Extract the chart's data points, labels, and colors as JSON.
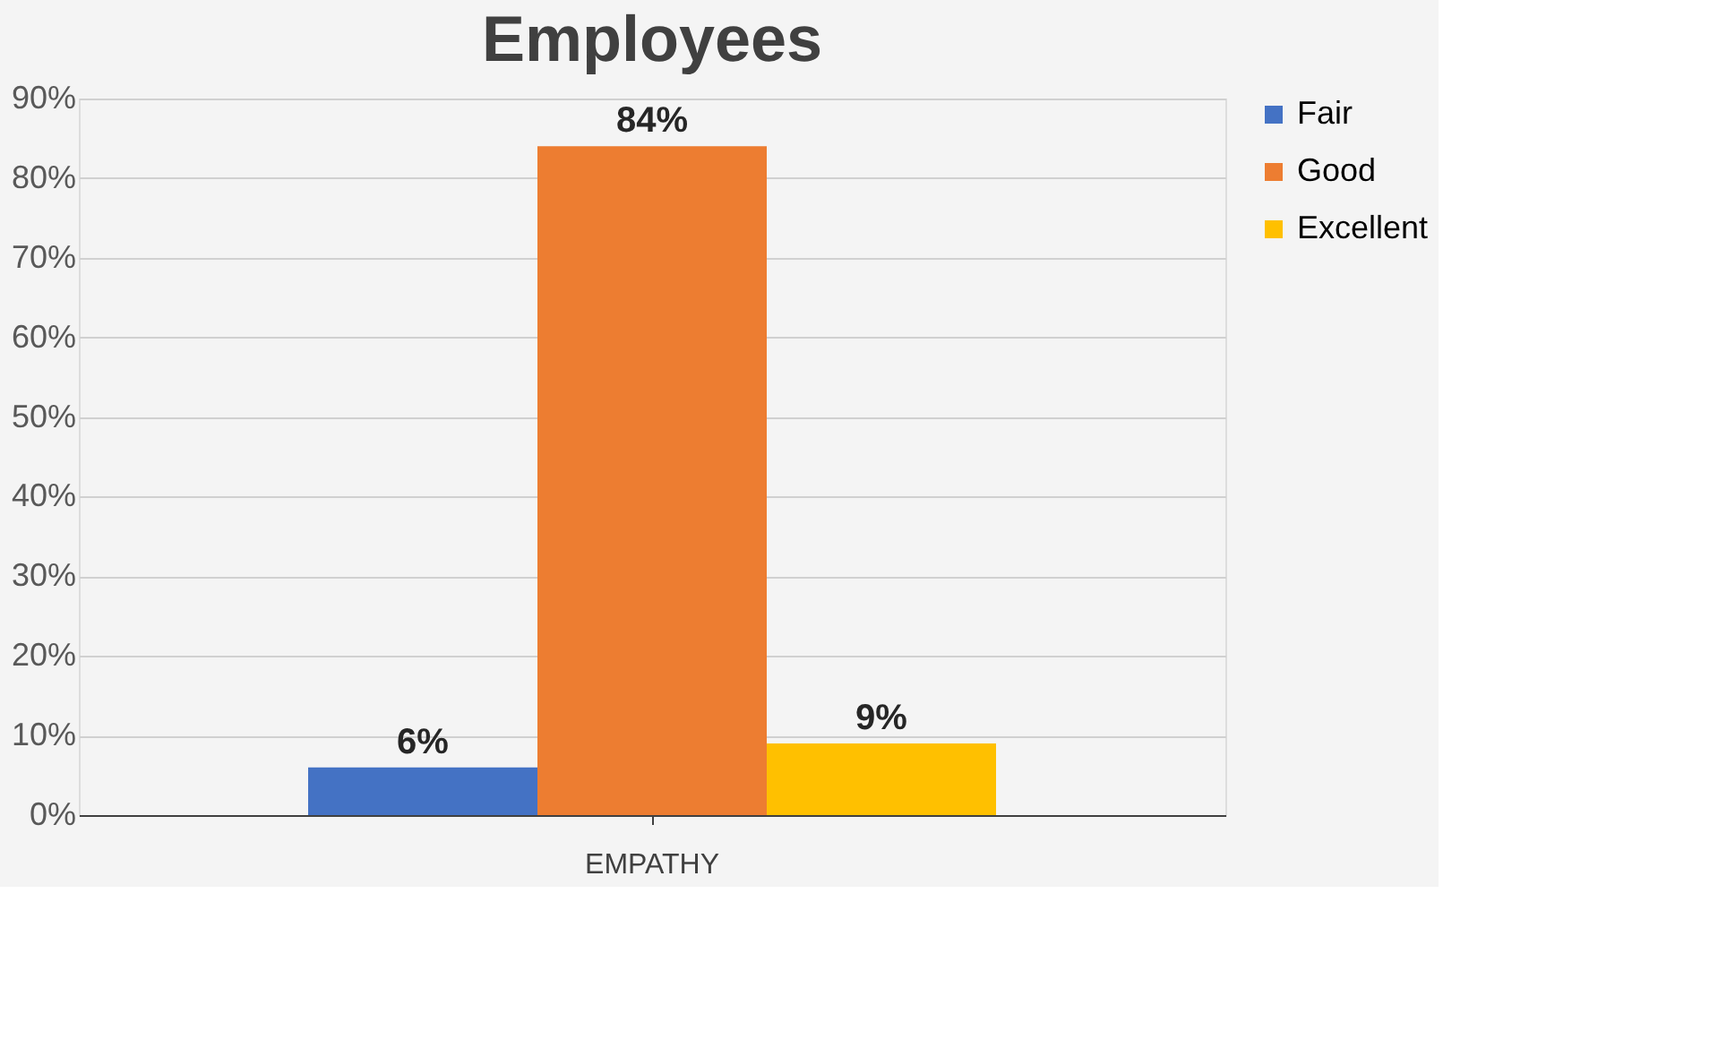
{
  "chart_data": {
    "type": "bar",
    "title": "Employees",
    "categories": [
      "EMPATHY"
    ],
    "series": [
      {
        "name": "Fair",
        "color": "#4472c4",
        "values": [
          6
        ],
        "value_labels": [
          "6%"
        ]
      },
      {
        "name": "Good",
        "color": "#ed7d31",
        "values": [
          84
        ],
        "value_labels": [
          "84%"
        ]
      },
      {
        "name": "Excellent",
        "color": "#ffc000",
        "values": [
          9
        ],
        "value_labels": [
          "9%"
        ]
      }
    ],
    "ylim": [
      0,
      90
    ],
    "yticks": [
      {
        "value": 0,
        "label": "0%"
      },
      {
        "value": 10,
        "label": "10%"
      },
      {
        "value": 20,
        "label": "20%"
      },
      {
        "value": 30,
        "label": "30%"
      },
      {
        "value": 40,
        "label": "40%"
      },
      {
        "value": 50,
        "label": "50%"
      },
      {
        "value": 60,
        "label": "60%"
      },
      {
        "value": 70,
        "label": "70%"
      },
      {
        "value": 80,
        "label": "80%"
      },
      {
        "value": 90,
        "label": "90%"
      }
    ],
    "grid": "y",
    "legend": "right"
  }
}
